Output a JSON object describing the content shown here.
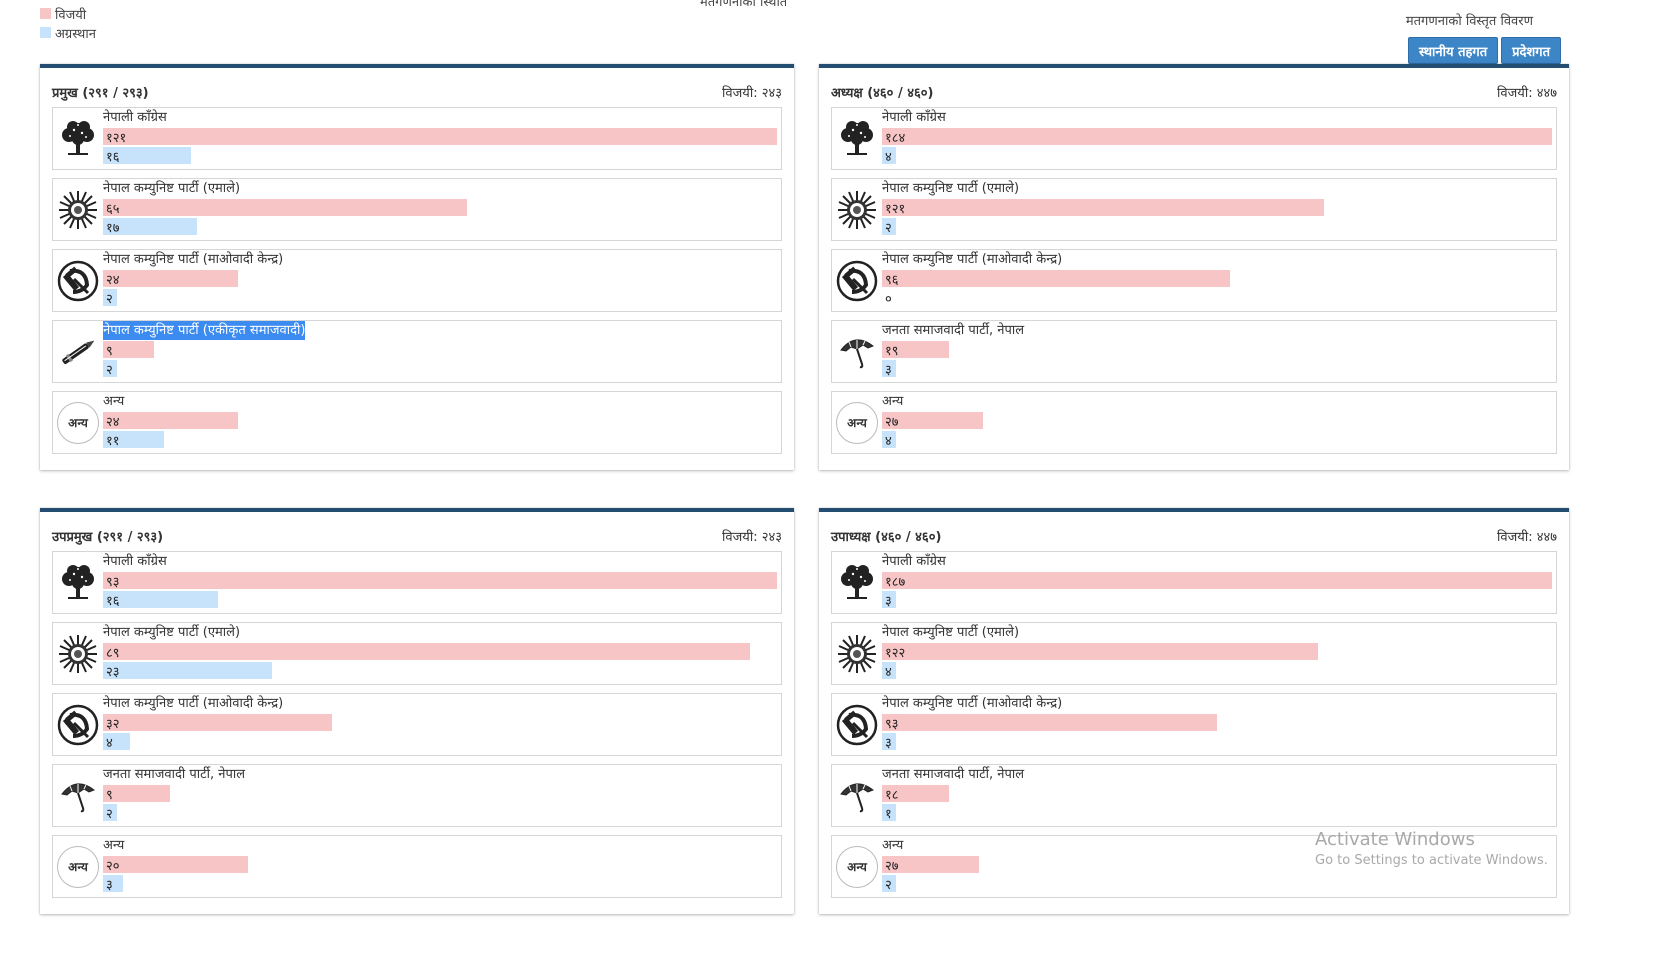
{
  "top_title": "मतगणनाको स्थिति",
  "legend": [
    {
      "label": "विजयी",
      "color": "#f8c5c6"
    },
    {
      "label": "अग्रस्थान",
      "color": "#c7e3fb"
    }
  ],
  "detail_label": "मतगणनाको विस्तृत विवरण",
  "buttons": [
    {
      "label": "स्थानीय तहगत"
    },
    {
      "label": "प्रदेशगत"
    }
  ],
  "watermark": {
    "line1": "Activate Windows",
    "line2": "Go to Settings to activate Windows."
  },
  "panels": [
    {
      "title": "प्रमुख (२९१ / २९३)",
      "winner_text": "विजयी: २४३",
      "rows": [
        {
          "party": "नेपाली काँग्रेस",
          "icon": "tree-icon",
          "won": "१२१",
          "won_pct": 100,
          "lead": "१६",
          "lead_pct": 13
        },
        {
          "party": "नेपाल कम्युनिष्ट पार्टी (एमाले)",
          "icon": "sun-icon",
          "won": "६५",
          "won_pct": 54,
          "lead": "१७",
          "lead_pct": 14
        },
        {
          "party": "नेपाल कम्युनिष्ट पार्टी (माओवादी केन्द्र)",
          "icon": "hammer-sickle-icon",
          "won": "२४",
          "won_pct": 20,
          "lead": "२",
          "lead_pct": 2
        },
        {
          "party": "नेपाल कम्युनिष्ट पार्टी (एकीकृत समाजवादी)",
          "icon": "pen-icon",
          "won": "९",
          "won_pct": 7.5,
          "lead": "२",
          "lead_pct": 2,
          "selected": true
        },
        {
          "party": "अन्य",
          "icon": "other-icon",
          "icon_text": "अन्य",
          "won": "२४",
          "won_pct": 20,
          "lead": "११",
          "lead_pct": 9
        }
      ]
    },
    {
      "title": "अध्यक्ष (४६० / ४६०)",
      "winner_text": "विजयी: ४४७",
      "rows": [
        {
          "party": "नेपाली काँग्रेस",
          "icon": "tree-icon",
          "won": "१८४",
          "won_pct": 100,
          "lead": "४",
          "lead_pct": 2
        },
        {
          "party": "नेपाल कम्युनिष्ट पार्टी (एमाले)",
          "icon": "sun-icon",
          "won": "१२१",
          "won_pct": 66,
          "lead": "२",
          "lead_pct": 1
        },
        {
          "party": "नेपाल कम्युनिष्ट पार्टी (माओवादी केन्द्र)",
          "icon": "hammer-sickle-icon",
          "won": "९६",
          "won_pct": 52,
          "lead": "०",
          "lead_pct": 0
        },
        {
          "party": "जनता समाजवादी पार्टी, नेपाल",
          "icon": "umbrella-icon",
          "won": "१९",
          "won_pct": 10,
          "lead": "३",
          "lead_pct": 2
        },
        {
          "party": "अन्य",
          "icon": "other-icon",
          "icon_text": "अन्य",
          "won": "२७",
          "won_pct": 15,
          "lead": "४",
          "lead_pct": 2
        }
      ]
    },
    {
      "title": "उपप्रमुख (२९१ / २९३)",
      "winner_text": "विजयी: २४३",
      "rows": [
        {
          "party": "नेपाली काँग्रेस",
          "icon": "tree-icon",
          "won": "९३",
          "won_pct": 100,
          "lead": "१६",
          "lead_pct": 17
        },
        {
          "party": "नेपाल कम्युनिष्ट पार्टी (एमाले)",
          "icon": "sun-icon",
          "won": "८९",
          "won_pct": 96,
          "lead": "२३",
          "lead_pct": 25
        },
        {
          "party": "नेपाल कम्युनिष्ट पार्टी (माओवादी केन्द्र)",
          "icon": "hammer-sickle-icon",
          "won": "३२",
          "won_pct": 34,
          "lead": "४",
          "lead_pct": 4
        },
        {
          "party": "जनता समाजवादी पार्टी, नेपाल",
          "icon": "umbrella-icon",
          "won": "९",
          "won_pct": 10,
          "lead": "२",
          "lead_pct": 2
        },
        {
          "party": "अन्य",
          "icon": "other-icon",
          "icon_text": "अन्य",
          "won": "२०",
          "won_pct": 21.5,
          "lead": "३",
          "lead_pct": 3
        }
      ]
    },
    {
      "title": "उपाध्यक्ष (४६० / ४६०)",
      "winner_text": "विजयी: ४४७",
      "rows": [
        {
          "party": "नेपाली काँग्रेस",
          "icon": "tree-icon",
          "won": "१८७",
          "won_pct": 100,
          "lead": "३",
          "lead_pct": 2
        },
        {
          "party": "नेपाल कम्युनिष्ट पार्टी (एमाले)",
          "icon": "sun-icon",
          "won": "१२२",
          "won_pct": 65,
          "lead": "४",
          "lead_pct": 2
        },
        {
          "party": "नेपाल कम्युनिष्ट पार्टी (माओवादी केन्द्र)",
          "icon": "hammer-sickle-icon",
          "won": "९३",
          "won_pct": 50,
          "lead": "३",
          "lead_pct": 2
        },
        {
          "party": "जनता समाजवादी पार्टी, नेपाल",
          "icon": "umbrella-icon",
          "won": "१८",
          "won_pct": 10,
          "lead": "१",
          "lead_pct": 1
        },
        {
          "party": "अन्य",
          "icon": "other-icon",
          "icon_text": "अन्य",
          "won": "२७",
          "won_pct": 14.5,
          "lead": "२",
          "lead_pct": 1
        }
      ]
    }
  ]
}
